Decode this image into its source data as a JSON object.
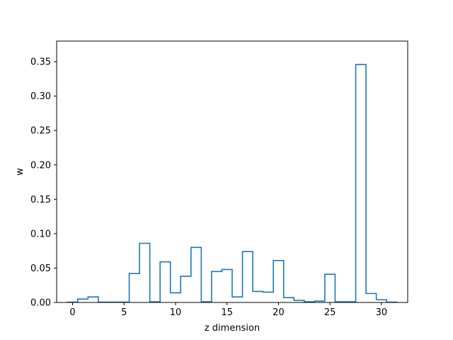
{
  "chart_data": {
    "type": "line",
    "style": "step",
    "xlabel": "z dimension",
    "ylabel": "w",
    "xlim": [
      -1.55,
      32.55
    ],
    "ylim": [
      0,
      0.38
    ],
    "x_ticks": [
      0,
      5,
      10,
      15,
      20,
      25,
      30
    ],
    "y_ticks": [
      0.0,
      0.05,
      0.1,
      0.15,
      0.2,
      0.25,
      0.3,
      0.35
    ],
    "grid": false,
    "line_color": "#1f77b4",
    "series": [
      {
        "x": [
          0,
          1,
          2,
          3,
          4,
          5,
          6,
          7,
          8,
          9,
          10,
          11,
          12,
          13,
          14,
          15,
          16,
          17,
          18,
          19,
          20,
          21,
          22,
          23,
          24,
          25,
          26,
          27,
          28,
          29,
          30,
          31
        ],
        "values": [
          0.0005,
          0.005,
          0.008,
          0.0005,
          0.0005,
          0.0005,
          0.042,
          0.086,
          0.001,
          0.059,
          0.014,
          0.038,
          0.08,
          0.001,
          0.045,
          0.048,
          0.008,
          0.074,
          0.016,
          0.015,
          0.061,
          0.007,
          0.003,
          0.001,
          0.002,
          0.041,
          0.001,
          0.001,
          0.346,
          0.013,
          0.004,
          0.0005
        ]
      }
    ]
  }
}
